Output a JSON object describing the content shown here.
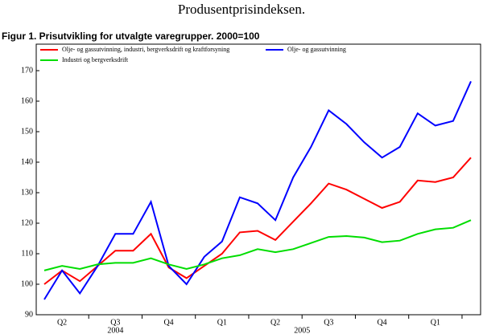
{
  "chart_data": {
    "type": "line",
    "title": "Produsentprisindeksen.",
    "subtitle": "Figur 1. Prisutvikling for utvalgte varegrupper. 2000=100",
    "categories": [
      null,
      "Q2",
      null,
      null,
      "Q3",
      null,
      null,
      "Q4",
      null,
      null,
      "Q1",
      null,
      null,
      "Q2",
      null,
      null,
      "Q3",
      null,
      null,
      "Q4",
      null,
      null,
      "Q1",
      null,
      null
    ],
    "years": [
      "2004",
      "2005"
    ],
    "series": [
      {
        "name": "Olje- og gassutvinning, industri, bergverksdrift og kraftforsyning",
        "color": "#ff0000",
        "values": [
          100,
          104.5,
          101,
          106,
          111,
          111,
          116.5,
          105.5,
          102,
          106,
          110,
          117,
          117.5,
          114.5,
          120.5,
          126.5,
          133,
          131,
          128,
          125,
          127,
          134,
          133.5,
          135,
          141.5
        ]
      },
      {
        "name": "Olje- og gassutvinning",
        "color": "#0000ff",
        "values": [
          95,
          104.5,
          97,
          106,
          116.5,
          116.5,
          127,
          106,
          100,
          109,
          114,
          128.5,
          126.5,
          121,
          135,
          145,
          157,
          152.5,
          146.5,
          141.5,
          145,
          156,
          152,
          153.5,
          166.5
        ]
      },
      {
        "name": "Industri og bergverksdrift",
        "color": "#00dd00",
        "values": [
          104.5,
          106,
          105,
          106.5,
          107,
          107,
          108.5,
          106.5,
          105,
          106.5,
          108.5,
          109.5,
          111.5,
          110.5,
          111.5,
          113.5,
          115.5,
          115.8,
          115.3,
          113.8,
          114.3,
          116.5,
          118,
          118.5,
          121
        ]
      }
    ],
    "ylim": [
      90,
      170
    ],
    "yticks": [
      90,
      100,
      110,
      120,
      130,
      140,
      150,
      160,
      170
    ]
  }
}
